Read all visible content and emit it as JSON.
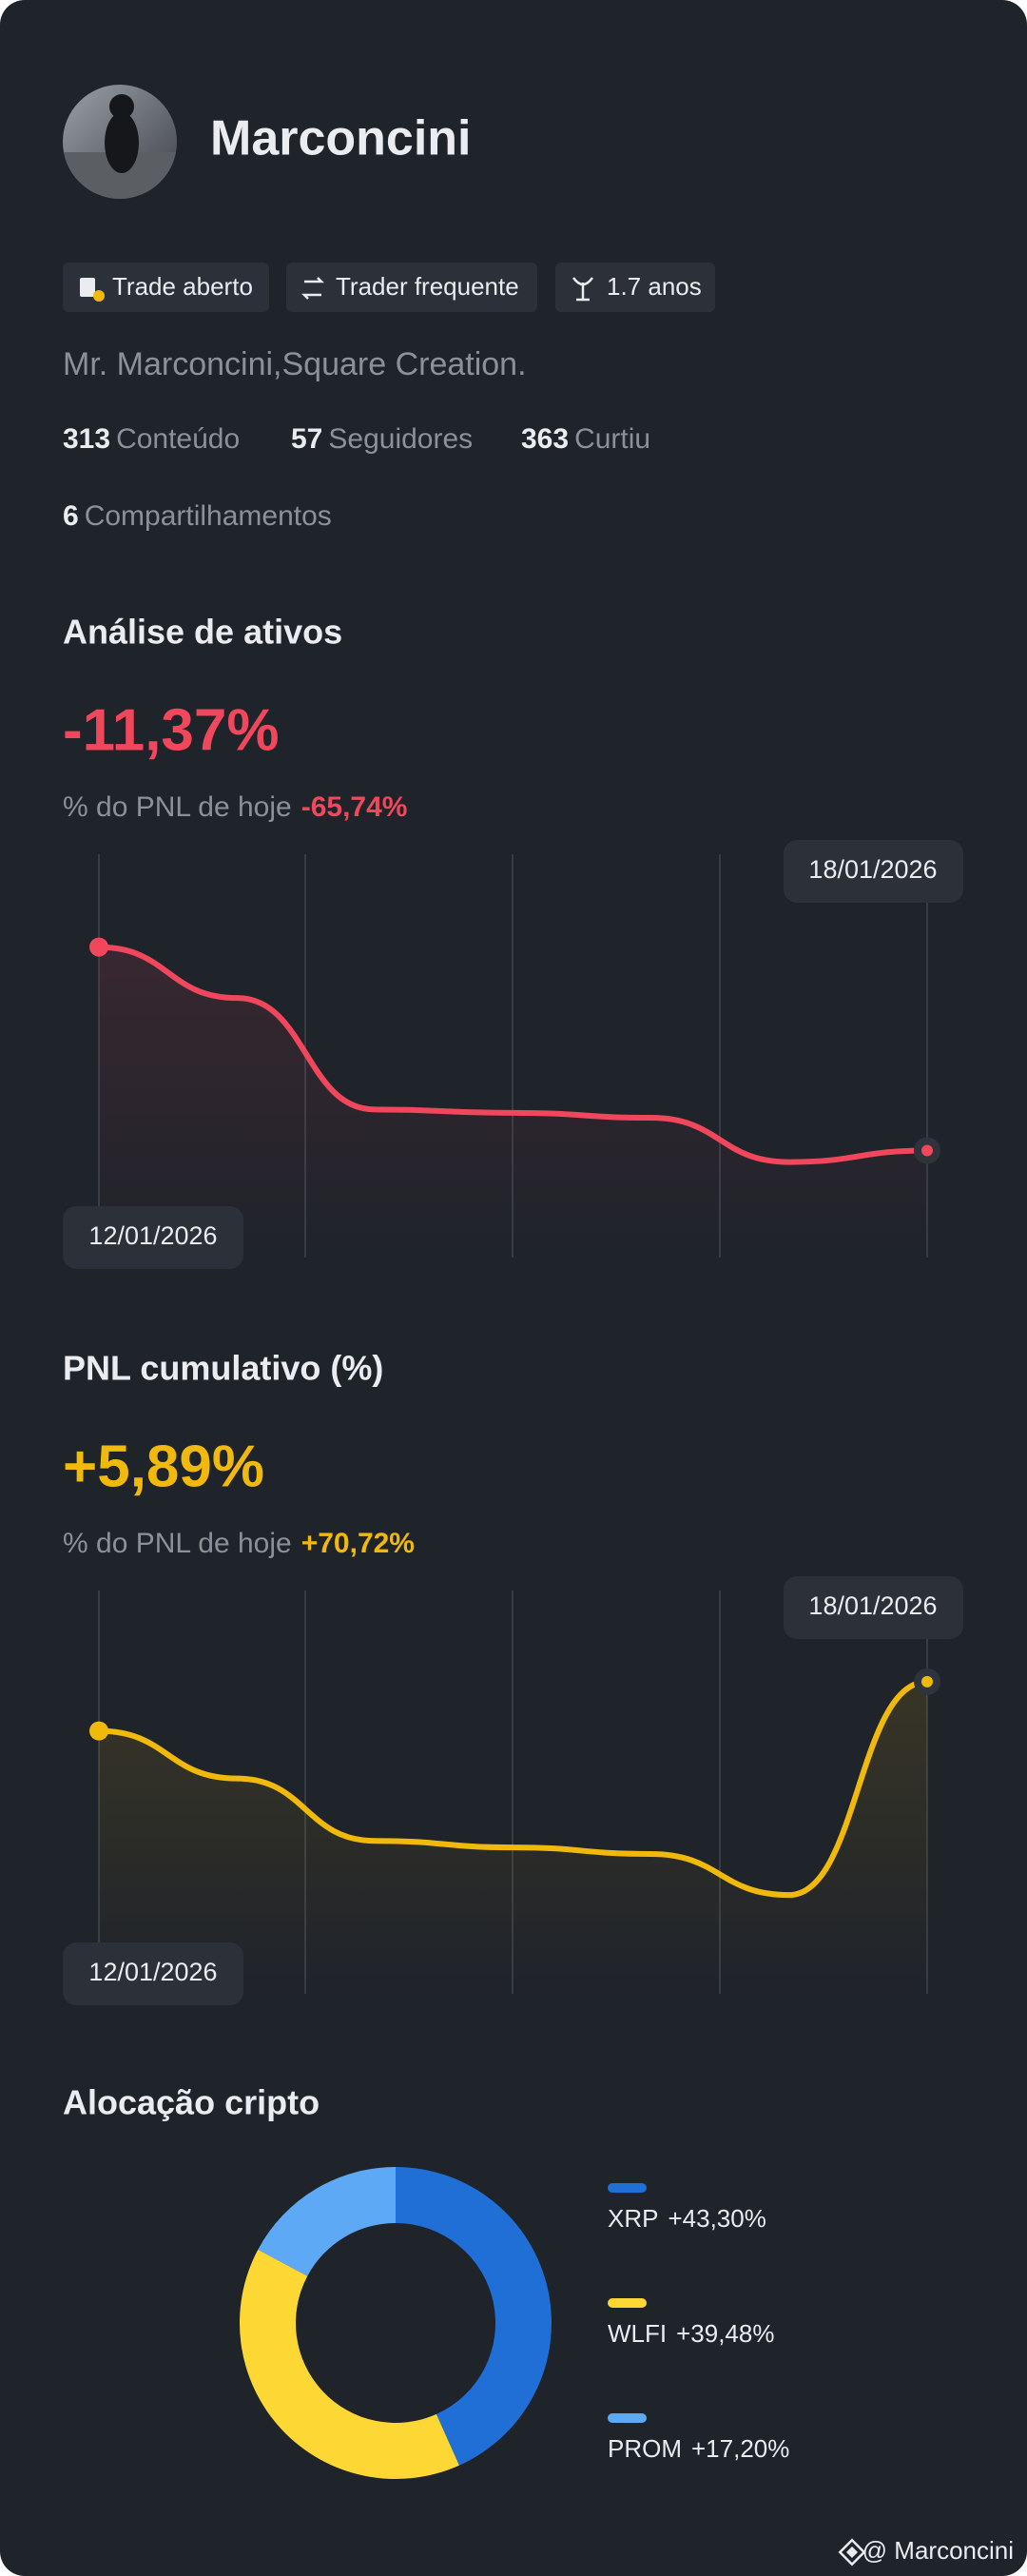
{
  "profile": {
    "name": "Marconcini",
    "tags": [
      "Trade aberto",
      "Trader frequente",
      "1.7 anos"
    ],
    "bio": "Mr. Marconcini,Square Creation.",
    "stats": [
      {
        "value": 313,
        "label": "Conteúdo"
      },
      {
        "value": 57,
        "label": "Seguidores"
      },
      {
        "value": 363,
        "label": "Curtiu"
      },
      {
        "value": 6,
        "label": "Compartilhamentos"
      }
    ]
  },
  "footer": "@ Marconcini",
  "chart_data": [
    {
      "type": "line",
      "title": "Análise de ativos",
      "headline": "-11,37%",
      "subtitle": "% do PNL de hoje",
      "subtitle_value": "-65,74%",
      "categories": [
        "12/01/2026",
        null,
        null,
        null,
        null,
        null,
        "18/01/2026"
      ],
      "series": [
        {
          "color": "#f0475c",
          "values": [
            92,
            76.5,
            42.5,
            41.5,
            40,
            26.5,
            30
          ]
        }
      ],
      "ylim": [
        0,
        100
      ]
    },
    {
      "type": "line",
      "title": "PNL cumulativo (%)",
      "headline": "+5,89%",
      "subtitle": "% do PNL de hoje",
      "subtitle_value": "+70,72%",
      "categories": [
        "12/01/2026",
        null,
        null,
        null,
        null,
        null,
        "18/01/2026"
      ],
      "series": [
        {
          "color": "#f0b90b",
          "values": [
            77.5,
            63,
            44,
            42,
            40,
            27.5,
            92.5
          ]
        }
      ],
      "ylim": [
        0,
        100
      ]
    },
    {
      "type": "donut",
      "title": "Alocação cripto",
      "categories": [
        "XRP",
        "WLFI",
        "PROM"
      ],
      "values": [
        43.3,
        39.48,
        17.2
      ],
      "value_labels": [
        "+43,30%",
        "+39,48%",
        "+17,20%"
      ],
      "colors": [
        "#1f6fd6",
        "#fdd835",
        "#5ea9f5"
      ]
    }
  ]
}
